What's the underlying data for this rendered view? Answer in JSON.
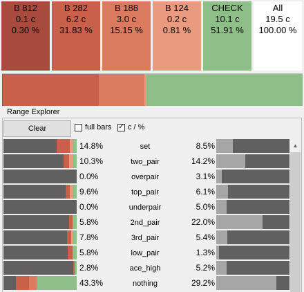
{
  "boxes": [
    {
      "label": "B 812",
      "count": "0.1 c",
      "pct": "0.30 %",
      "color": "#a84a3e"
    },
    {
      "label": "B 282",
      "count": "6.2 c",
      "pct": "31.83 %",
      "color": "#c8604a"
    },
    {
      "label": "B 188",
      "count": "3.0 c",
      "pct": "15.15 %",
      "color": "#da7a5e"
    },
    {
      "label": "B 124",
      "count": "0.2 c",
      "pct": "0.81 %",
      "color": "#ea9a7e"
    },
    {
      "label": "CHECK",
      "count": "10.1 c",
      "pct": "51.91 %",
      "color": "#8fbf88"
    },
    {
      "label": "All",
      "count": "19.5 c",
      "pct": "100.00 %",
      "color": "#ffffff"
    }
  ],
  "summary_bar": [
    {
      "name": "B 812",
      "fraction": 0.003,
      "color": "#a84a3e"
    },
    {
      "name": "B 282",
      "fraction": 0.3183,
      "color": "#c8604a"
    },
    {
      "name": "B 188",
      "fraction": 0.1515,
      "color": "#da7a5e"
    },
    {
      "name": "B 124",
      "fraction": 0.0081,
      "color": "#ea9a7e"
    },
    {
      "name": "CHECK",
      "fraction": 0.5191,
      "color": "#8fbf88"
    }
  ],
  "panel": {
    "title": "Range Explorer",
    "clear_label": "Clear",
    "full_bars_label": "full bars",
    "full_bars_checked": false,
    "c_pct_label": "c / %",
    "c_pct_checked": true
  },
  "rows": [
    {
      "name": "set",
      "left_pct": "14.8%",
      "right_pct": "8.5%",
      "right_fill": 0.23,
      "segments": [
        {
          "f": 0.73,
          "c": "#606060"
        },
        {
          "f": 0.18,
          "c": "#c8604a"
        },
        {
          "f": 0.03,
          "c": "#ea9a7e"
        },
        {
          "f": 0.06,
          "c": "#8fbf88"
        }
      ]
    },
    {
      "name": "two_pair",
      "left_pct": "10.3%",
      "right_pct": "14.2%",
      "right_fill": 0.4,
      "segments": [
        {
          "f": 0.82,
          "c": "#606060"
        },
        {
          "f": 0.08,
          "c": "#c8604a"
        },
        {
          "f": 0.04,
          "c": "#ea9a7e"
        },
        {
          "f": 0.06,
          "c": "#8fbf88"
        }
      ]
    },
    {
      "name": "overpair",
      "left_pct": "0.0%",
      "right_pct": "3.1%",
      "right_fill": 0.08,
      "segments": [
        {
          "f": 1.0,
          "c": "#606060"
        }
      ]
    },
    {
      "name": "top_pair",
      "left_pct": "9.6%",
      "right_pct": "6.1%",
      "right_fill": 0.16,
      "segments": [
        {
          "f": 0.85,
          "c": "#606060"
        },
        {
          "f": 0.06,
          "c": "#c8604a"
        },
        {
          "f": 0.03,
          "c": "#ea9a7e"
        },
        {
          "f": 0.06,
          "c": "#8fbf88"
        }
      ]
    },
    {
      "name": "underpair",
      "left_pct": "0.0%",
      "right_pct": "5.0%",
      "right_fill": 0.14,
      "segments": [
        {
          "f": 1.0,
          "c": "#606060"
        }
      ]
    },
    {
      "name": "2nd_pair",
      "left_pct": "5.8%",
      "right_pct": "22.0%",
      "right_fill": 0.63,
      "segments": [
        {
          "f": 0.9,
          "c": "#606060"
        },
        {
          "f": 0.04,
          "c": "#c8604a"
        },
        {
          "f": 0.06,
          "c": "#8fbf88"
        }
      ]
    },
    {
      "name": "3rd_pair",
      "left_pct": "7.8%",
      "right_pct": "5.4%",
      "right_fill": 0.15,
      "segments": [
        {
          "f": 0.87,
          "c": "#606060"
        },
        {
          "f": 0.05,
          "c": "#c8604a"
        },
        {
          "f": 0.02,
          "c": "#ea9a7e"
        },
        {
          "f": 0.06,
          "c": "#8fbf88"
        }
      ]
    },
    {
      "name": "low_pair",
      "left_pct": "5.8%",
      "right_pct": "1.3%",
      "right_fill": 0.04,
      "segments": [
        {
          "f": 0.88,
          "c": "#606060"
        },
        {
          "f": 0.06,
          "c": "#c8604a"
        },
        {
          "f": 0.06,
          "c": "#8fbf88"
        }
      ]
    },
    {
      "name": "ace_high",
      "left_pct": "2.8%",
      "right_pct": "5.2%",
      "right_fill": 0.14,
      "segments": [
        {
          "f": 0.95,
          "c": "#606060"
        },
        {
          "f": 0.02,
          "c": "#c8604a"
        },
        {
          "f": 0.03,
          "c": "#8fbf88"
        }
      ]
    },
    {
      "name": "nothing",
      "left_pct": "43.3%",
      "right_pct": "29.2%",
      "right_fill": 0.82,
      "segments": [
        {
          "f": 0.17,
          "c": "#606060"
        },
        {
          "f": 0.18,
          "c": "#c8604a"
        },
        {
          "f": 0.1,
          "c": "#da7a5e"
        },
        {
          "f": 0.55,
          "c": "#8fbf88"
        }
      ]
    }
  ],
  "scrollbar": {
    "up_icon": "scroll-up-arrow"
  }
}
